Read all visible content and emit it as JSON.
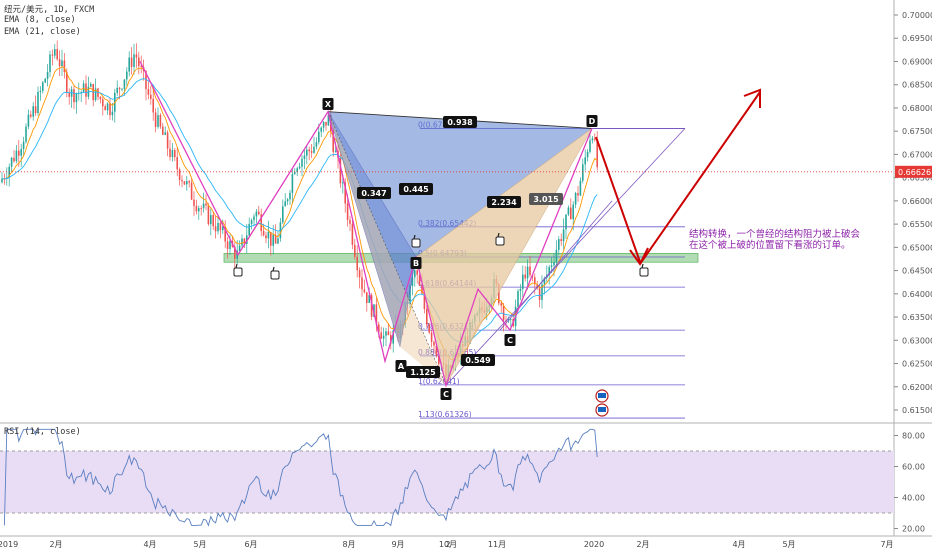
{
  "header": {
    "symbol_line": "纽元/美元, 1D, FXCM",
    "ema1": "EMA (8, close)",
    "ema2": "EMA (21, close)"
  },
  "rsi": {
    "label": "RSI (14, close)",
    "ticks": [
      "80.00",
      "60.00",
      "40.00",
      "20.00"
    ]
  },
  "price": {
    "current": "0.66626"
  },
  "annotation": {
    "line1": "结构转换，一个曾经的结构阻力被上破会",
    "line2": "在这个被上破的位置留下看涨的订单。"
  },
  "colors": {
    "pattern_blue": "#5b7fcf",
    "pattern_tan": "#e8c9a0",
    "zigzag": "#e040c0",
    "arrow": "#cc0000",
    "support_zone": "#a5d6a7",
    "rsi_band": "#e9dcf5",
    "rsi_line": "#5a7fc0"
  },
  "chart_data": {
    "type": "candlestick",
    "ylim": [
      0.6115,
      0.7015
    ],
    "y_ticks": [
      "0.70000",
      "0.69500",
      "0.69000",
      "0.68500",
      "0.68000",
      "0.67500",
      "0.67000",
      "0.66500",
      "0.66000",
      "0.65500",
      "0.65000",
      "0.64500",
      "0.64000",
      "0.63500",
      "0.63000",
      "0.62500",
      "0.62000",
      "0.61500"
    ],
    "x_ticks": [
      "2019",
      "2月",
      "4月",
      "5月",
      "6月",
      "8月",
      "9月",
      "10月",
      "2",
      "11月",
      "2020",
      "2月",
      "4月",
      "5月",
      "7月"
    ],
    "points": [
      {
        "name": "X",
        "price": 0.6792
      },
      {
        "name": "A",
        "price": 0.6286
      },
      {
        "name": "B",
        "price": 0.6479
      },
      {
        "name": "C",
        "price": 0.6203
      },
      {
        "name": "C",
        "price": 0.6322
      },
      {
        "name": "D",
        "price": 0.6756
      }
    ],
    "ratios": [
      "0.938",
      "0.347",
      "0.445",
      "2.234",
      "3.015",
      "1.125",
      "0.549"
    ],
    "fib_levels": [
      {
        "label": "0(0.67556)",
        "price": 0.67556
      },
      {
        "label": "0.382(0.65442)",
        "price": 0.65442
      },
      {
        "label": "0.5(0.64793)",
        "price": 0.64793
      },
      {
        "label": "0.618(0.64144)",
        "price": 0.64144
      },
      {
        "label": "0.786(0.63219)",
        "price": 0.63219
      },
      {
        "label": "0.886(0.62665)",
        "price": 0.62665
      },
      {
        "label": "1(0.62041)",
        "price": 0.62041
      },
      {
        "label": "1.13(0.61326)",
        "price": 0.61326
      }
    ],
    "support_zone": [
      0.6468,
      0.6487
    ],
    "rsi_ylim": [
      18,
      88
    ],
    "rsi_band": [
      30,
      70
    ]
  }
}
